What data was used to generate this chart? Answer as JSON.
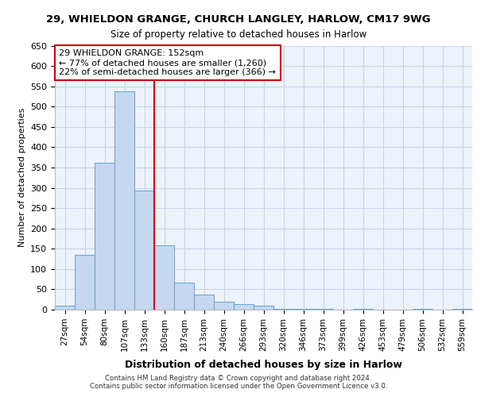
{
  "title1": "29, WHIELDON GRANGE, CHURCH LANGLEY, HARLOW, CM17 9WG",
  "title2": "Size of property relative to detached houses in Harlow",
  "xlabel": "Distribution of detached houses by size in Harlow",
  "ylabel": "Number of detached properties",
  "footer1": "Contains HM Land Registry data © Crown copyright and database right 2024.",
  "footer2": "Contains public sector information licensed under the Open Government Licence v3.0.",
  "bar_labels": [
    "27sqm",
    "54sqm",
    "80sqm",
    "107sqm",
    "133sqm",
    "160sqm",
    "187sqm",
    "213sqm",
    "240sqm",
    "266sqm",
    "293sqm",
    "320sqm",
    "346sqm",
    "373sqm",
    "399sqm",
    "426sqm",
    "453sqm",
    "479sqm",
    "506sqm",
    "532sqm",
    "559sqm"
  ],
  "bar_values": [
    10,
    135,
    362,
    537,
    293,
    158,
    66,
    38,
    20,
    13,
    9,
    2,
    1,
    1,
    0,
    1,
    0,
    0,
    2,
    0,
    2
  ],
  "bar_color": "#c5d8f0",
  "bar_edge_color": "#6aaad4",
  "property_line_x": 4.5,
  "property_line_label": "29 WHIELDON GRANGE: 152sqm",
  "annotation_line1": "← 77% of detached houses are smaller (1,260)",
  "annotation_line2": "22% of semi-detached houses are larger (366) →",
  "ylim": [
    0,
    650
  ],
  "yticks": [
    0,
    50,
    100,
    150,
    200,
    250,
    300,
    350,
    400,
    450,
    500,
    550,
    600,
    650
  ],
  "red_line_color": "#cc0000",
  "grid_color": "#c8d4e8",
  "bg_color": "#eef2fa"
}
